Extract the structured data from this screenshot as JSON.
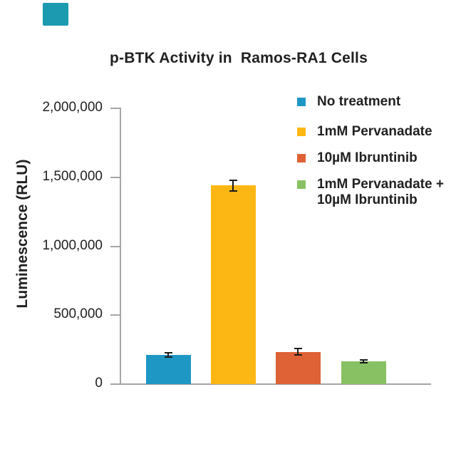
{
  "page": {
    "background": "#ffffff"
  },
  "corner_accent": {
    "color": "#1b9ab0"
  },
  "chart_data": {
    "type": "bar",
    "title": "p-BTK Activity in  Ramos-RA1 Cells",
    "xlabel": "",
    "ylabel": "Luminescence (RLU)",
    "ylim": [
      0,
      2000000
    ],
    "grid": false,
    "legend_position": "upper right",
    "yticks": [
      {
        "value": 2000000,
        "label": "2,000,000"
      },
      {
        "value": 1500000,
        "label": "1,500,000"
      },
      {
        "value": 1000000,
        "label": "1,000,000"
      },
      {
        "value": 500000,
        "label": "500,000"
      },
      {
        "value": 0,
        "label": "0"
      }
    ],
    "categories": [
      "No treatment",
      "1mM Pervanadate",
      "10µM Ibruntinib",
      "1mM Pervanadate + 10µM Ibruntinib"
    ],
    "series": [
      {
        "name": "Luminescence (RLU)",
        "values": [
          210000,
          1440000,
          235000,
          165000
        ],
        "errors": [
          15000,
          40000,
          25000,
          10000
        ]
      }
    ],
    "colors": [
      "#1f97c5",
      "#fdb714",
      "#de6236",
      "#88c164"
    ],
    "axis_color": "#a6a6a6",
    "error_bar_color": "#1b1b1b",
    "text_color": "#212121"
  },
  "legend": {
    "items": [
      {
        "label": "No treatment",
        "color": "#1f97c5"
      },
      {
        "label": "1mM Pervanadate",
        "color": "#fdb714"
      },
      {
        "label": "10µM Ibruntinib",
        "color": "#de6236"
      },
      {
        "label": "1mM Pervanadate +\n10µM Ibruntinib",
        "color": "#88c164"
      }
    ]
  }
}
